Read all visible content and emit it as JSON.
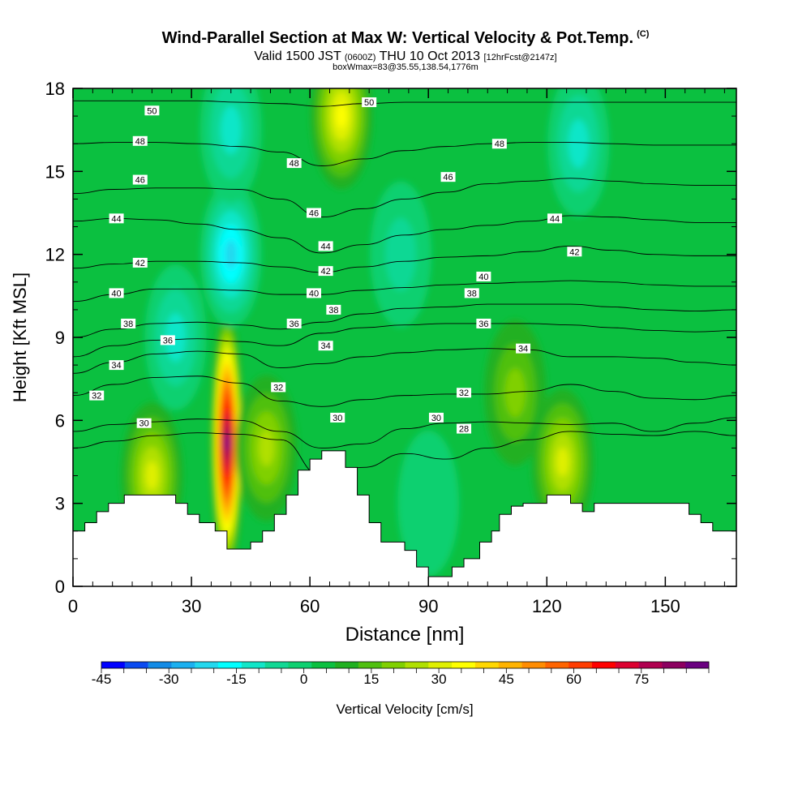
{
  "header": {
    "title": "Wind-Parallel Section at Max W: Vertical Velocity & Pot.Temp.",
    "copyright_mark": "(C)",
    "valid_prefix": "Valid 1500 JST",
    "valid_utc": "(0600Z)",
    "valid_date": "THU 10 Oct 2013",
    "forecast": "[12hrFcst@2147z]",
    "box_info": "boxWmax=83@35.55,138.54,1776m"
  },
  "colors": {
    "background": "#ffffff",
    "terrain": "#ffffff",
    "contour": "#000000",
    "colorbar": [
      "#0000ff",
      "#0a4af0",
      "#128be6",
      "#1bb0f0",
      "#22d8ee",
      "#00ffff",
      "#10e6c8",
      "#10d894",
      "#0ed070",
      "#0bc040",
      "#20b020",
      "#50c010",
      "#80d000",
      "#b0e000",
      "#e0f000",
      "#ffff00",
      "#ffd700",
      "#ffb300",
      "#ff8c00",
      "#ff6400",
      "#ff3c00",
      "#ff0000",
      "#dc0030",
      "#b00050",
      "#8c0060",
      "#6a0080"
    ]
  },
  "chart_data": {
    "type": "heatmap",
    "xlabel": "Distance [nm]",
    "ylabel": "Height [Kft MSL]",
    "xlim": [
      0,
      168
    ],
    "ylim": [
      0,
      18
    ],
    "xticks": [
      0,
      30,
      60,
      90,
      120,
      150
    ],
    "yticks": [
      0,
      3,
      6,
      9,
      12,
      15,
      18
    ],
    "colorbar": {
      "label": "Vertical Velocity [cm/s]",
      "min": -45,
      "max": 90,
      "step": 5,
      "ticks": [
        -45,
        -30,
        -15,
        0,
        15,
        30,
        45,
        60,
        75
      ]
    },
    "max_w_cm_s": 83,
    "velocity_features": [
      {
        "x_nm": 39,
        "z_kft": 5.2,
        "w": 83
      },
      {
        "x_nm": 40,
        "z_kft": 12.0,
        "w": -25
      },
      {
        "x_nm": 40,
        "z_kft": 16.5,
        "w": -18
      },
      {
        "x_nm": 26,
        "z_kft": 9.0,
        "w": -15
      },
      {
        "x_nm": 20,
        "z_kft": 4.0,
        "w": 25
      },
      {
        "x_nm": 49,
        "z_kft": 5.0,
        "w": 20
      },
      {
        "x_nm": 68,
        "z_kft": 17.0,
        "w": 30
      },
      {
        "x_nm": 124,
        "z_kft": 4.5,
        "w": 25
      },
      {
        "x_nm": 112,
        "z_kft": 7.0,
        "w": 15
      },
      {
        "x_nm": 83,
        "z_kft": 12.0,
        "w": -10
      },
      {
        "x_nm": 128,
        "z_kft": 16.0,
        "w": -15
      },
      {
        "x_nm": 90,
        "z_kft": 3.0,
        "w": -5
      },
      {
        "x_nm": 150,
        "z_kft": 4.0,
        "w": -3
      }
    ],
    "terrain_kft": [
      [
        0,
        2.0
      ],
      [
        3,
        2.0
      ],
      [
        3,
        2.3
      ],
      [
        6,
        2.3
      ],
      [
        6,
        2.7
      ],
      [
        9,
        2.7
      ],
      [
        9,
        3.0
      ],
      [
        13,
        3.0
      ],
      [
        13,
        3.3
      ],
      [
        26,
        3.3
      ],
      [
        26,
        3.0
      ],
      [
        29,
        3.0
      ],
      [
        29,
        2.6
      ],
      [
        32,
        2.6
      ],
      [
        32,
        2.3
      ],
      [
        36,
        2.3
      ],
      [
        36,
        2.0
      ],
      [
        39,
        2.0
      ],
      [
        39,
        1.35
      ],
      [
        45,
        1.35
      ],
      [
        45,
        1.6
      ],
      [
        48,
        1.6
      ],
      [
        48,
        2.0
      ],
      [
        51,
        2.0
      ],
      [
        51,
        2.6
      ],
      [
        54,
        2.6
      ],
      [
        54,
        3.3
      ],
      [
        57,
        3.3
      ],
      [
        57,
        4.2
      ],
      [
        60,
        4.2
      ],
      [
        60,
        4.6
      ],
      [
        63,
        4.6
      ],
      [
        63,
        4.9
      ],
      [
        69,
        4.9
      ],
      [
        69,
        4.3
      ],
      [
        72,
        4.3
      ],
      [
        72,
        3.3
      ],
      [
        75,
        3.3
      ],
      [
        75,
        2.3
      ],
      [
        78,
        2.3
      ],
      [
        78,
        1.6
      ],
      [
        84,
        1.6
      ],
      [
        84,
        1.3
      ],
      [
        87,
        1.3
      ],
      [
        87,
        0.7
      ],
      [
        90,
        0.7
      ],
      [
        90,
        0.35
      ],
      [
        96,
        0.35
      ],
      [
        96,
        0.7
      ],
      [
        99,
        0.7
      ],
      [
        99,
        1.0
      ],
      [
        103,
        1.0
      ],
      [
        103,
        1.6
      ],
      [
        106,
        1.6
      ],
      [
        106,
        2.0
      ],
      [
        108,
        2.0
      ],
      [
        108,
        2.6
      ],
      [
        111,
        2.6
      ],
      [
        111,
        2.9
      ],
      [
        114,
        2.9
      ],
      [
        114,
        3.0
      ],
      [
        120,
        3.0
      ],
      [
        120,
        3.3
      ],
      [
        126,
        3.3
      ],
      [
        126,
        3.0
      ],
      [
        129,
        3.0
      ],
      [
        129,
        2.7
      ],
      [
        132,
        2.7
      ],
      [
        132,
        3.0
      ],
      [
        139,
        3.0
      ],
      [
        139,
        3.0
      ],
      [
        156,
        3.0
      ],
      [
        156,
        2.6
      ],
      [
        159,
        2.6
      ],
      [
        159,
        2.3
      ],
      [
        162,
        2.3
      ],
      [
        162,
        2.0
      ],
      [
        168,
        2.0
      ]
    ],
    "isentropes": [
      {
        "theta": 28,
        "z_kft": [
          5.0,
          5.25,
          5.45,
          5.55,
          5.5,
          5.3,
          4.0,
          4.3,
          4.8,
          4.6,
          5.0,
          5.3,
          5.6,
          5.5,
          5.45,
          5.6,
          5.45
        ]
      },
      {
        "theta": 30,
        "z_kft": [
          5.6,
          5.85,
          5.95,
          6.05,
          6.0,
          5.6,
          5.0,
          5.15,
          5.7,
          5.9,
          5.95,
          5.9,
          5.85,
          5.9,
          5.6,
          5.9,
          6.1
        ]
      },
      {
        "theta": 32,
        "z_kft": [
          6.9,
          7.3,
          7.55,
          7.6,
          7.35,
          6.7,
          6.5,
          6.75,
          6.9,
          6.95,
          6.95,
          7.05,
          7.3,
          7.05,
          6.8,
          6.75,
          6.9
        ]
      },
      {
        "theta": 34,
        "z_kft": [
          7.7,
          8.1,
          8.4,
          8.5,
          8.4,
          7.9,
          8.05,
          8.3,
          8.45,
          8.55,
          8.6,
          8.55,
          8.3,
          8.3,
          8.25,
          8.1,
          8.0
        ]
      },
      {
        "theta": 36,
        "z_kft": [
          8.3,
          8.7,
          8.9,
          8.95,
          8.85,
          8.7,
          9.15,
          9.35,
          9.45,
          9.5,
          9.5,
          9.5,
          9.45,
          9.35,
          9.25,
          9.2,
          9.25
        ]
      },
      {
        "theta": 38,
        "z_kft": [
          9.0,
          9.3,
          9.5,
          9.55,
          9.45,
          9.3,
          9.55,
          9.85,
          10.05,
          10.1,
          10.2,
          10.2,
          10.2,
          10.1,
          10.0,
          9.95,
          10.0
        ]
      },
      {
        "theta": 40,
        "z_kft": [
          10.3,
          10.55,
          10.75,
          10.75,
          10.7,
          10.55,
          10.55,
          10.7,
          10.8,
          10.9,
          10.95,
          11.0,
          11.05,
          11.0,
          10.9,
          10.85,
          10.85
        ]
      },
      {
        "theta": 42,
        "z_kft": [
          11.5,
          11.65,
          11.75,
          11.75,
          11.7,
          11.55,
          11.35,
          11.55,
          11.75,
          11.9,
          11.95,
          12.1,
          12.3,
          12.15,
          12.0,
          11.95,
          11.95
        ]
      },
      {
        "theta": 44,
        "z_kft": [
          13.2,
          13.3,
          13.25,
          13.1,
          12.9,
          12.6,
          12.05,
          12.35,
          12.7,
          12.9,
          13.05,
          13.2,
          13.4,
          13.35,
          13.25,
          13.15,
          13.15
        ]
      },
      {
        "theta": 46,
        "z_kft": [
          14.2,
          14.35,
          14.4,
          14.4,
          14.35,
          14.0,
          13.35,
          13.65,
          14.0,
          14.25,
          14.55,
          14.65,
          14.75,
          14.65,
          14.55,
          14.5,
          14.5
        ]
      },
      {
        "theta": 48,
        "z_kft": [
          16.0,
          16.05,
          16.05,
          16.0,
          15.9,
          15.7,
          15.2,
          15.45,
          15.75,
          15.9,
          16.0,
          16.05,
          16.05,
          16.0,
          15.95,
          15.95,
          15.95
        ]
      },
      {
        "theta": 50,
        "z_kft": [
          17.55,
          17.55,
          17.55,
          17.55,
          17.5,
          17.45,
          17.35,
          17.45,
          17.5,
          17.5,
          17.5,
          17.5,
          17.5,
          17.5,
          17.5,
          17.5,
          17.5
        ]
      }
    ],
    "isentrope_x_nm": [
      0,
      10.5,
      21,
      31.5,
      42,
      52.5,
      63,
      73.5,
      84,
      94.5,
      105,
      115.5,
      126,
      136.5,
      147,
      157.5,
      168
    ],
    "contour_labels": [
      {
        "text": "50",
        "x": 20,
        "z": 17.2
      },
      {
        "text": "50",
        "x": 75,
        "z": 17.5
      },
      {
        "text": "48",
        "x": 17,
        "z": 16.1
      },
      {
        "text": "48",
        "x": 56,
        "z": 15.3
      },
      {
        "text": "48",
        "x": 108,
        "z": 16.0
      },
      {
        "text": "46",
        "x": 17,
        "z": 14.7
      },
      {
        "text": "46",
        "x": 61,
        "z": 13.5
      },
      {
        "text": "46",
        "x": 95,
        "z": 14.8
      },
      {
        "text": "44",
        "x": 11,
        "z": 13.3
      },
      {
        "text": "44",
        "x": 64,
        "z": 12.3
      },
      {
        "text": "44",
        "x": 122,
        "z": 13.3
      },
      {
        "text": "42",
        "x": 17,
        "z": 11.7
      },
      {
        "text": "42",
        "x": 64,
        "z": 11.4
      },
      {
        "text": "42",
        "x": 127,
        "z": 12.1
      },
      {
        "text": "40",
        "x": 11,
        "z": 10.6
      },
      {
        "text": "40",
        "x": 61,
        "z": 10.6
      },
      {
        "text": "40",
        "x": 104,
        "z": 11.2
      },
      {
        "text": "38",
        "x": 14,
        "z": 9.5
      },
      {
        "text": "38",
        "x": 66,
        "z": 10.0
      },
      {
        "text": "38",
        "x": 101,
        "z": 10.6
      },
      {
        "text": "36",
        "x": 24,
        "z": 8.9
      },
      {
        "text": "36",
        "x": 56,
        "z": 9.5
      },
      {
        "text": "36",
        "x": 104,
        "z": 9.5
      },
      {
        "text": "34",
        "x": 11,
        "z": 8.0
      },
      {
        "text": "34",
        "x": 64,
        "z": 8.7
      },
      {
        "text": "34",
        "x": 114,
        "z": 8.6
      },
      {
        "text": "32",
        "x": 6,
        "z": 6.9
      },
      {
        "text": "32",
        "x": 52,
        "z": 7.2
      },
      {
        "text": "32",
        "x": 99,
        "z": 7.0
      },
      {
        "text": "30",
        "x": 18,
        "z": 5.9
      },
      {
        "text": "30",
        "x": 67,
        "z": 6.1
      },
      {
        "text": "30",
        "x": 92,
        "z": 6.1
      },
      {
        "text": "28",
        "x": 99,
        "z": 5.7
      }
    ]
  }
}
